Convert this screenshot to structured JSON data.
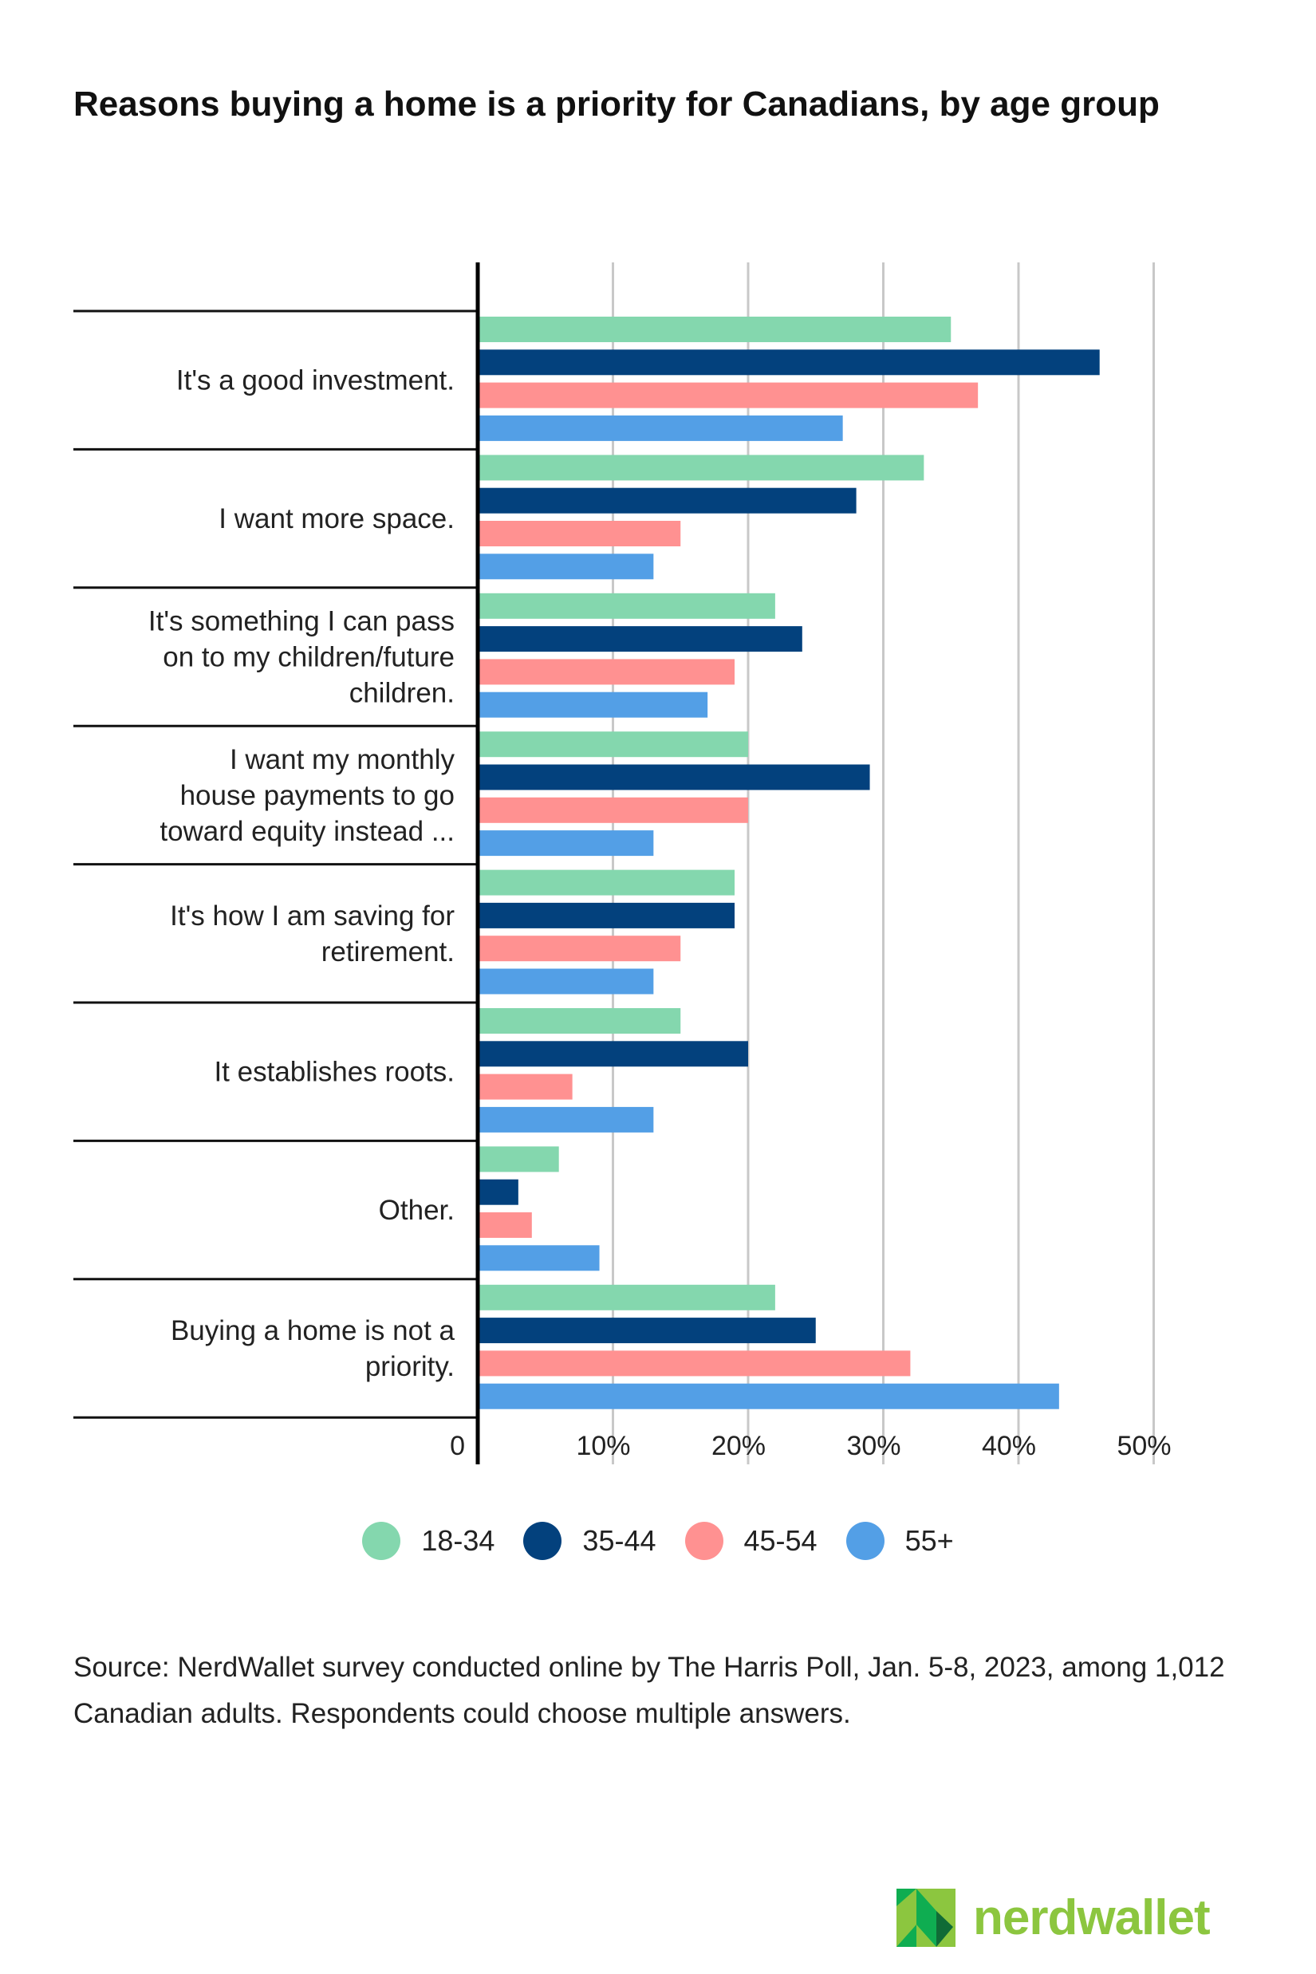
{
  "chart_data": {
    "type": "bar",
    "orientation": "horizontal",
    "title": "Reasons buying a home is a priority for Canadians, by age group",
    "categories": [
      [
        "It's a good investment."
      ],
      [
        "I want more space."
      ],
      [
        "It's something I can pass",
        "on to my children/future",
        "children."
      ],
      [
        "I want my monthly",
        "house payments to go",
        "toward equity instead ..."
      ],
      [
        "It's how I am saving for",
        "retirement."
      ],
      [
        "It establishes roots."
      ],
      [
        "Other."
      ],
      [
        "Buying a home is not a",
        "priority."
      ]
    ],
    "series": [
      {
        "name": "18-34",
        "color": "#84d7ae",
        "values": [
          35,
          33,
          22,
          20,
          19,
          15,
          6,
          22
        ]
      },
      {
        "name": "35-44",
        "color": "#03417d",
        "values": [
          46,
          28,
          24,
          29,
          19,
          20,
          3,
          25
        ]
      },
      {
        "name": "45-54",
        "color": "#ff9191",
        "values": [
          37,
          15,
          19,
          20,
          15,
          7,
          4,
          32
        ]
      },
      {
        "name": "55+",
        "color": "#539fe6",
        "values": [
          27,
          13,
          17,
          13,
          13,
          13,
          9,
          43
        ]
      }
    ],
    "xticks": [
      "0",
      "10%",
      "20%",
      "30%",
      "40%",
      "50%"
    ],
    "xlim": [
      0,
      50
    ],
    "grid": true,
    "legend_position": "bottom"
  },
  "source": "Source: NerdWallet survey conducted online by The Harris Poll, Jan. 5-8, 2023, among 1,012 Canadian adults. Respondents could choose multiple answers.",
  "logo": {
    "text": "nerdwallet"
  }
}
